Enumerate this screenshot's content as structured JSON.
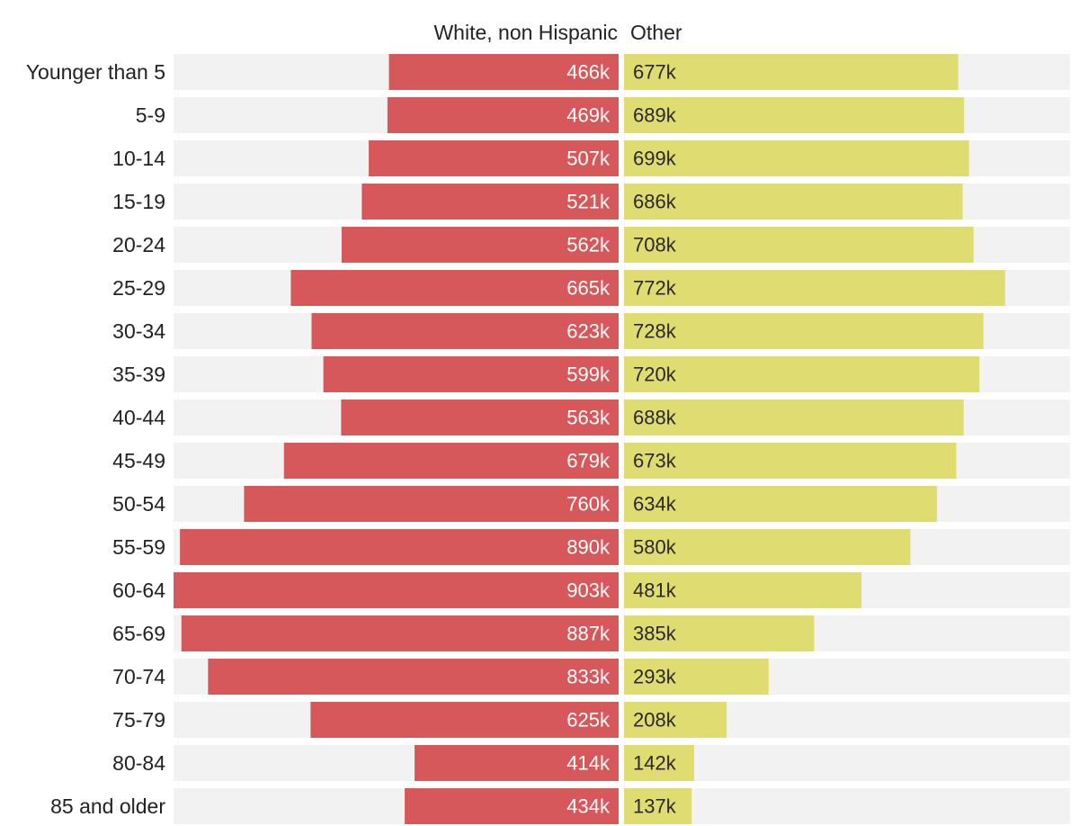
{
  "chart_data": {
    "type": "bar",
    "layout": "diverging-horizontal",
    "title": "",
    "xlabel": "",
    "ylabel": "",
    "categories": [
      "Younger than 5",
      "5-9",
      "10-14",
      "15-19",
      "20-24",
      "25-29",
      "30-34",
      "35-39",
      "40-44",
      "45-49",
      "50-54",
      "55-59",
      "60-64",
      "65-69",
      "70-74",
      "75-79",
      "80-84",
      "85 and older"
    ],
    "series": [
      {
        "name": "White, non Hispanic",
        "color": "#d6585a",
        "label_color": "#ffffff",
        "values": [
          466,
          469,
          507,
          521,
          562,
          665,
          623,
          599,
          563,
          679,
          760,
          890,
          903,
          887,
          833,
          625,
          414,
          434
        ],
        "labels": [
          "466k",
          "469k",
          "507k",
          "521k",
          "562k",
          "665k",
          "623k",
          "599k",
          "563k",
          "679k",
          "760k",
          "890k",
          "903k",
          "887k",
          "833k",
          "625k",
          "414k",
          "434k"
        ]
      },
      {
        "name": "Other",
        "color": "#dfdc72",
        "label_color": "#2a2a2a",
        "values": [
          677,
          689,
          699,
          686,
          708,
          772,
          728,
          720,
          688,
          673,
          634,
          580,
          481,
          385,
          293,
          208,
          142,
          137
        ],
        "labels": [
          "677k",
          "689k",
          "699k",
          "686k",
          "708k",
          "772k",
          "728k",
          "720k",
          "688k",
          "673k",
          "634k",
          "580k",
          "481k",
          "385k",
          "293k",
          "208k",
          "142k",
          "137k"
        ]
      }
    ],
    "units": "thousands",
    "xlim": [
      0,
      903
    ],
    "track_color": "#f2f2f2",
    "grid": false,
    "legend": "top-center"
  }
}
